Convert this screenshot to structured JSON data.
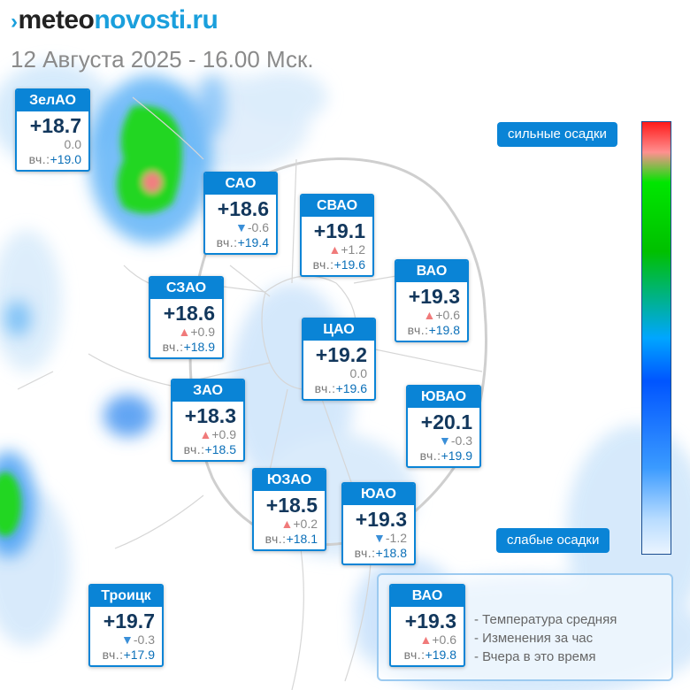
{
  "header": {
    "brand_part1": "meteo",
    "brand_part2": "novosti.ru",
    "date": "12 Августа 2025 - 16.00 Мск."
  },
  "colors": {
    "accent": "#0a84d6",
    "temp_text": "#12375c",
    "change_up": "#f07a7a",
    "change_down": "#3a8fd8",
    "brand": "#1a9fdc"
  },
  "districts": [
    {
      "name": "ЗелАО",
      "temp": "+18.7",
      "dir": "none",
      "change": "0.0",
      "yesterday_label": "вч.:",
      "yesterday": "+19.0"
    },
    {
      "name": "САО",
      "temp": "+18.6",
      "dir": "down",
      "change": "-0.6",
      "yesterday_label": "вч.:",
      "yesterday": "+19.4"
    },
    {
      "name": "СВАО",
      "temp": "+19.1",
      "dir": "up",
      "change": "+1.2",
      "yesterday_label": "вч.:",
      "yesterday": "+19.6"
    },
    {
      "name": "ВАО",
      "temp": "+19.3",
      "dir": "up",
      "change": "+0.6",
      "yesterday_label": "вч.:",
      "yesterday": "+19.8"
    },
    {
      "name": "СЗАО",
      "temp": "+18.6",
      "dir": "up",
      "change": "+0.9",
      "yesterday_label": "вч.:",
      "yesterday": "+18.9"
    },
    {
      "name": "ЦАО",
      "temp": "+19.2",
      "dir": "none",
      "change": "0.0",
      "yesterday_label": "вч.:",
      "yesterday": "+19.6"
    },
    {
      "name": "ЗАО",
      "temp": "+18.3",
      "dir": "up",
      "change": "+0.9",
      "yesterday_label": "вч.:",
      "yesterday": "+18.5"
    },
    {
      "name": "ЮВАО",
      "temp": "+20.1",
      "dir": "down",
      "change": "-0.3",
      "yesterday_label": "вч.:",
      "yesterday": "+19.9"
    },
    {
      "name": "ЮЗАО",
      "temp": "+18.5",
      "dir": "up",
      "change": "+0.2",
      "yesterday_label": "вч.:",
      "yesterday": "+18.1"
    },
    {
      "name": "ЮАО",
      "temp": "+19.3",
      "dir": "down",
      "change": "-1.2",
      "yesterday_label": "вч.:",
      "yesterday": "+18.8"
    },
    {
      "name": "Троицк",
      "temp": "+19.7",
      "dir": "down",
      "change": "-0.3",
      "yesterday_label": "вч.:",
      "yesterday": "+17.9"
    }
  ],
  "scale": {
    "top_label": "сильные осадки",
    "bottom_label": "слабые осадки"
  },
  "legend": {
    "sample": {
      "name": "ВАО",
      "temp": "+19.3",
      "dir": "up",
      "change": "+0.6",
      "yesterday_label": "вч.:",
      "yesterday": "+19.8"
    },
    "line1": "- Температура средняя",
    "line2": "- Изменения за час",
    "line3": "- Вчера в это время"
  }
}
